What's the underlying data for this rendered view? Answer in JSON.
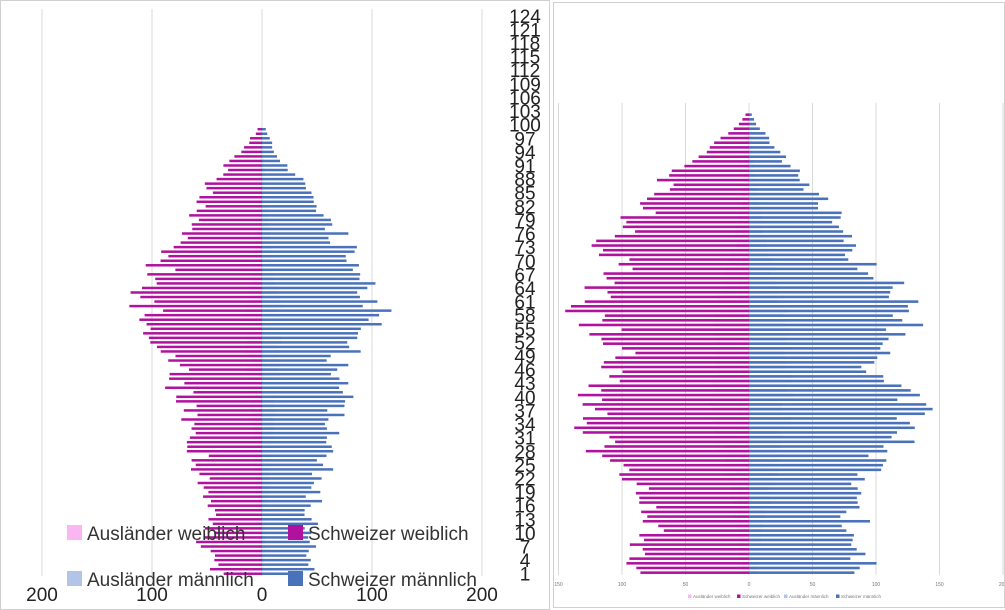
{
  "chart_data": [
    {
      "type": "bar",
      "subtype": "population-pyramid",
      "age_tick_labels": [
        "1",
        "4",
        "7",
        "10",
        "13",
        "16",
        "19",
        "22",
        "25",
        "28",
        "31",
        "34",
        "37",
        "40",
        "43",
        "46",
        "49",
        "52",
        "55",
        "58",
        "61",
        "64",
        "67",
        "70",
        "73",
        "76",
        "79",
        "82",
        "85",
        "88",
        "91",
        "94",
        "97",
        "100",
        "103",
        "106",
        "109",
        "112",
        "115",
        "118",
        "121",
        "124"
      ],
      "x_tick_labels": [
        "200",
        "100",
        "0",
        "100",
        "200"
      ],
      "xlim": [
        -200,
        200
      ],
      "grid": true,
      "legend_position": "bottom-left",
      "legend": [
        "Ausländer weiblich",
        "Schweizer weiblich",
        "Ausländer männlich",
        "Schweizer männlich"
      ],
      "colors": {
        "auslaender_weiblich": "#f9b6f3",
        "schweizer_weiblich": "#b0119f",
        "auslaender_maennlich": "#b3c4e8",
        "schweizer_maennlich": "#4a72bb"
      },
      "series": [
        {
          "name": "Ausländer weiblich",
          "side": "left",
          "anchors": [
            [
              0,
              2
            ],
            [
              10,
              4
            ],
            [
              20,
              5
            ],
            [
              30,
              8
            ],
            [
              40,
              12
            ],
            [
              50,
              13
            ],
            [
              56,
              16
            ],
            [
              62,
              11
            ],
            [
              70,
              7
            ],
            [
              80,
              4
            ],
            [
              90,
              2
            ],
            [
              97,
              1
            ]
          ]
        },
        {
          "name": "Schweizer weiblich",
          "side": "left",
          "anchors": [
            [
              0,
              37
            ],
            [
              5,
              55
            ],
            [
              10,
              50
            ],
            [
              18,
              45
            ],
            [
              22,
              55
            ],
            [
              30,
              62
            ],
            [
              40,
              75
            ],
            [
              45,
              75
            ],
            [
              50,
              85
            ],
            [
              56,
              110
            ],
            [
              62,
              105
            ],
            [
              65,
              95
            ],
            [
              70,
              90
            ],
            [
              75,
              78
            ],
            [
              80,
              62
            ],
            [
              85,
              48
            ],
            [
              88,
              40
            ],
            [
              92,
              22
            ],
            [
              95,
              12
            ],
            [
              98,
              4
            ]
          ]
        },
        {
          "name": "Ausländer männlich",
          "side": "right",
          "anchors": [
            [
              0,
              2
            ],
            [
              10,
              4
            ],
            [
              20,
              6
            ],
            [
              30,
              10
            ],
            [
              40,
              14
            ],
            [
              50,
              16
            ],
            [
              56,
              20
            ],
            [
              62,
              14
            ],
            [
              70,
              9
            ],
            [
              80,
              5
            ],
            [
              90,
              2
            ],
            [
              97,
              1
            ]
          ]
        },
        {
          "name": "Schweizer männlich",
          "side": "right",
          "anchors": [
            [
              0,
              40
            ],
            [
              5,
              50
            ],
            [
              10,
              45
            ],
            [
              18,
              48
            ],
            [
              22,
              55
            ],
            [
              30,
              60
            ],
            [
              40,
              72
            ],
            [
              45,
              65
            ],
            [
              50,
              80
            ],
            [
              56,
              105
            ],
            [
              62,
              98
            ],
            [
              65,
              90
            ],
            [
              70,
              80
            ],
            [
              75,
              70
            ],
            [
              80,
              55
            ],
            [
              85,
              40
            ],
            [
              88,
              30
            ],
            [
              92,
              15
            ],
            [
              95,
              8
            ],
            [
              98,
              3
            ]
          ]
        }
      ]
    },
    {
      "type": "bar",
      "subtype": "population-pyramid",
      "x_tick_labels": [
        "150",
        "100",
        "50",
        "0",
        "50",
        "100",
        "150",
        "200"
      ],
      "xlim": [
        -150,
        200
      ],
      "grid": true,
      "legend_position": "bottom",
      "legend": [
        "Ausländer weiblich",
        "Schweizer weiblich",
        "Ausländer männlich",
        "Schweizer männlich"
      ],
      "series": [
        {
          "name": "Ausländer weiblich",
          "side": "left",
          "anchors": [
            [
              0,
              6
            ],
            [
              10,
              10
            ],
            [
              20,
              18
            ],
            [
              30,
              25
            ],
            [
              40,
              28
            ],
            [
              50,
              27
            ],
            [
              56,
              25
            ],
            [
              62,
              20
            ],
            [
              70,
              12
            ],
            [
              80,
              6
            ],
            [
              90,
              3
            ],
            [
              98,
              1
            ]
          ]
        },
        {
          "name": "Schweizer weiblich",
          "side": "left",
          "anchors": [
            [
              0,
              80
            ],
            [
              5,
              90
            ],
            [
              10,
              75
            ],
            [
              16,
              80
            ],
            [
              22,
              100
            ],
            [
              30,
              125
            ],
            [
              36,
              115
            ],
            [
              40,
              120
            ],
            [
              45,
              100
            ],
            [
              50,
              108
            ],
            [
              56,
              130
            ],
            [
              60,
              120
            ],
            [
              65,
              100
            ],
            [
              70,
              110
            ],
            [
              75,
              90
            ],
            [
              80,
              80
            ],
            [
              85,
              60
            ],
            [
              88,
              45
            ],
            [
              92,
              25
            ],
            [
              95,
              12
            ],
            [
              98,
              3
            ]
          ]
        },
        {
          "name": "Ausländer männlich",
          "side": "right",
          "anchors": [
            [
              0,
              6
            ],
            [
              10,
              10
            ],
            [
              20,
              20
            ],
            [
              30,
              28
            ],
            [
              40,
              32
            ],
            [
              50,
              30
            ],
            [
              56,
              28
            ],
            [
              62,
              22
            ],
            [
              70,
              14
            ],
            [
              80,
              7
            ],
            [
              90,
              3
            ],
            [
              98,
              1
            ]
          ]
        },
        {
          "name": "Schweizer männlich",
          "side": "right",
          "anchors": [
            [
              0,
              85
            ],
            [
              5,
              95
            ],
            [
              10,
              85
            ],
            [
              16,
              75
            ],
            [
              22,
              95
            ],
            [
              30,
              130
            ],
            [
              36,
              125
            ],
            [
              40,
              120
            ],
            [
              45,
              100
            ],
            [
              50,
              110
            ],
            [
              56,
              130
            ],
            [
              60,
              120
            ],
            [
              65,
              95
            ],
            [
              70,
              80
            ],
            [
              75,
              70
            ],
            [
              80,
              55
            ],
            [
              85,
              38
            ],
            [
              88,
              30
            ],
            [
              92,
              18
            ],
            [
              95,
              8
            ],
            [
              98,
              2
            ]
          ]
        }
      ]
    }
  ]
}
